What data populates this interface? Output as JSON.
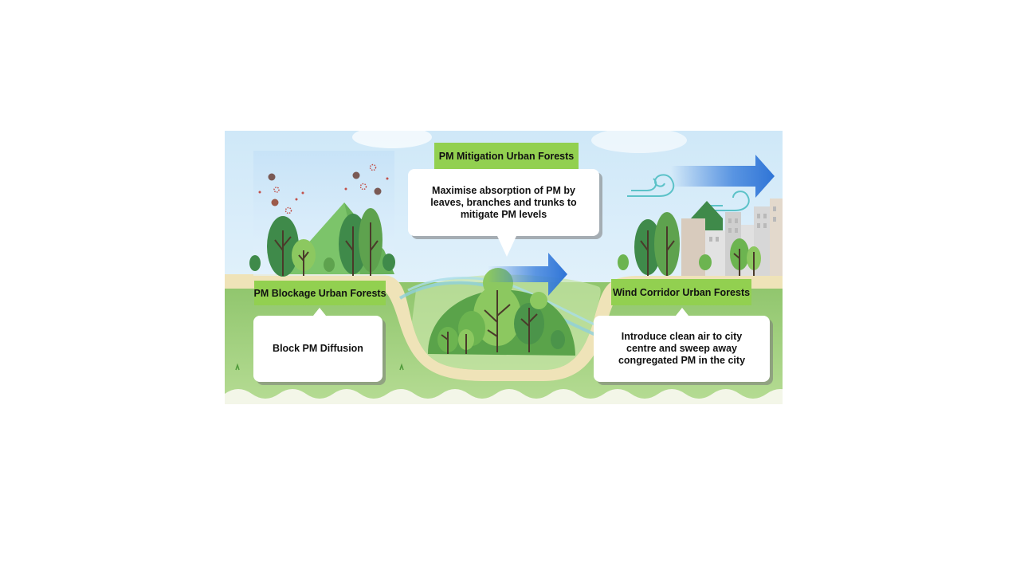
{
  "panels": {
    "blockage": {
      "title": "PM Blockage Urban Forests",
      "description": "Block PM Diffusion"
    },
    "mitigation": {
      "title": "PM Mitigation Urban Forests",
      "description": "Maximise absorption of PM by leaves, branches and trunks to mitigate PM levels"
    },
    "wind_corridor": {
      "title": "Wind Corridor Urban Forests",
      "description": "Introduce clean air to city centre and sweep away congregated PM in the city"
    }
  },
  "colors": {
    "label_green": "#92d050",
    "sky": "#dff0fb",
    "ground_green": "#9ccf7a",
    "path_beige": "#efe3b8",
    "arrow_blue": "#2f74d6",
    "pm_particle": "#7a5a55"
  },
  "icons": [
    "pm-particle-icon",
    "wind-arrow-icon",
    "wind-swirl-icon",
    "tree-icon",
    "city-building-icon"
  ]
}
